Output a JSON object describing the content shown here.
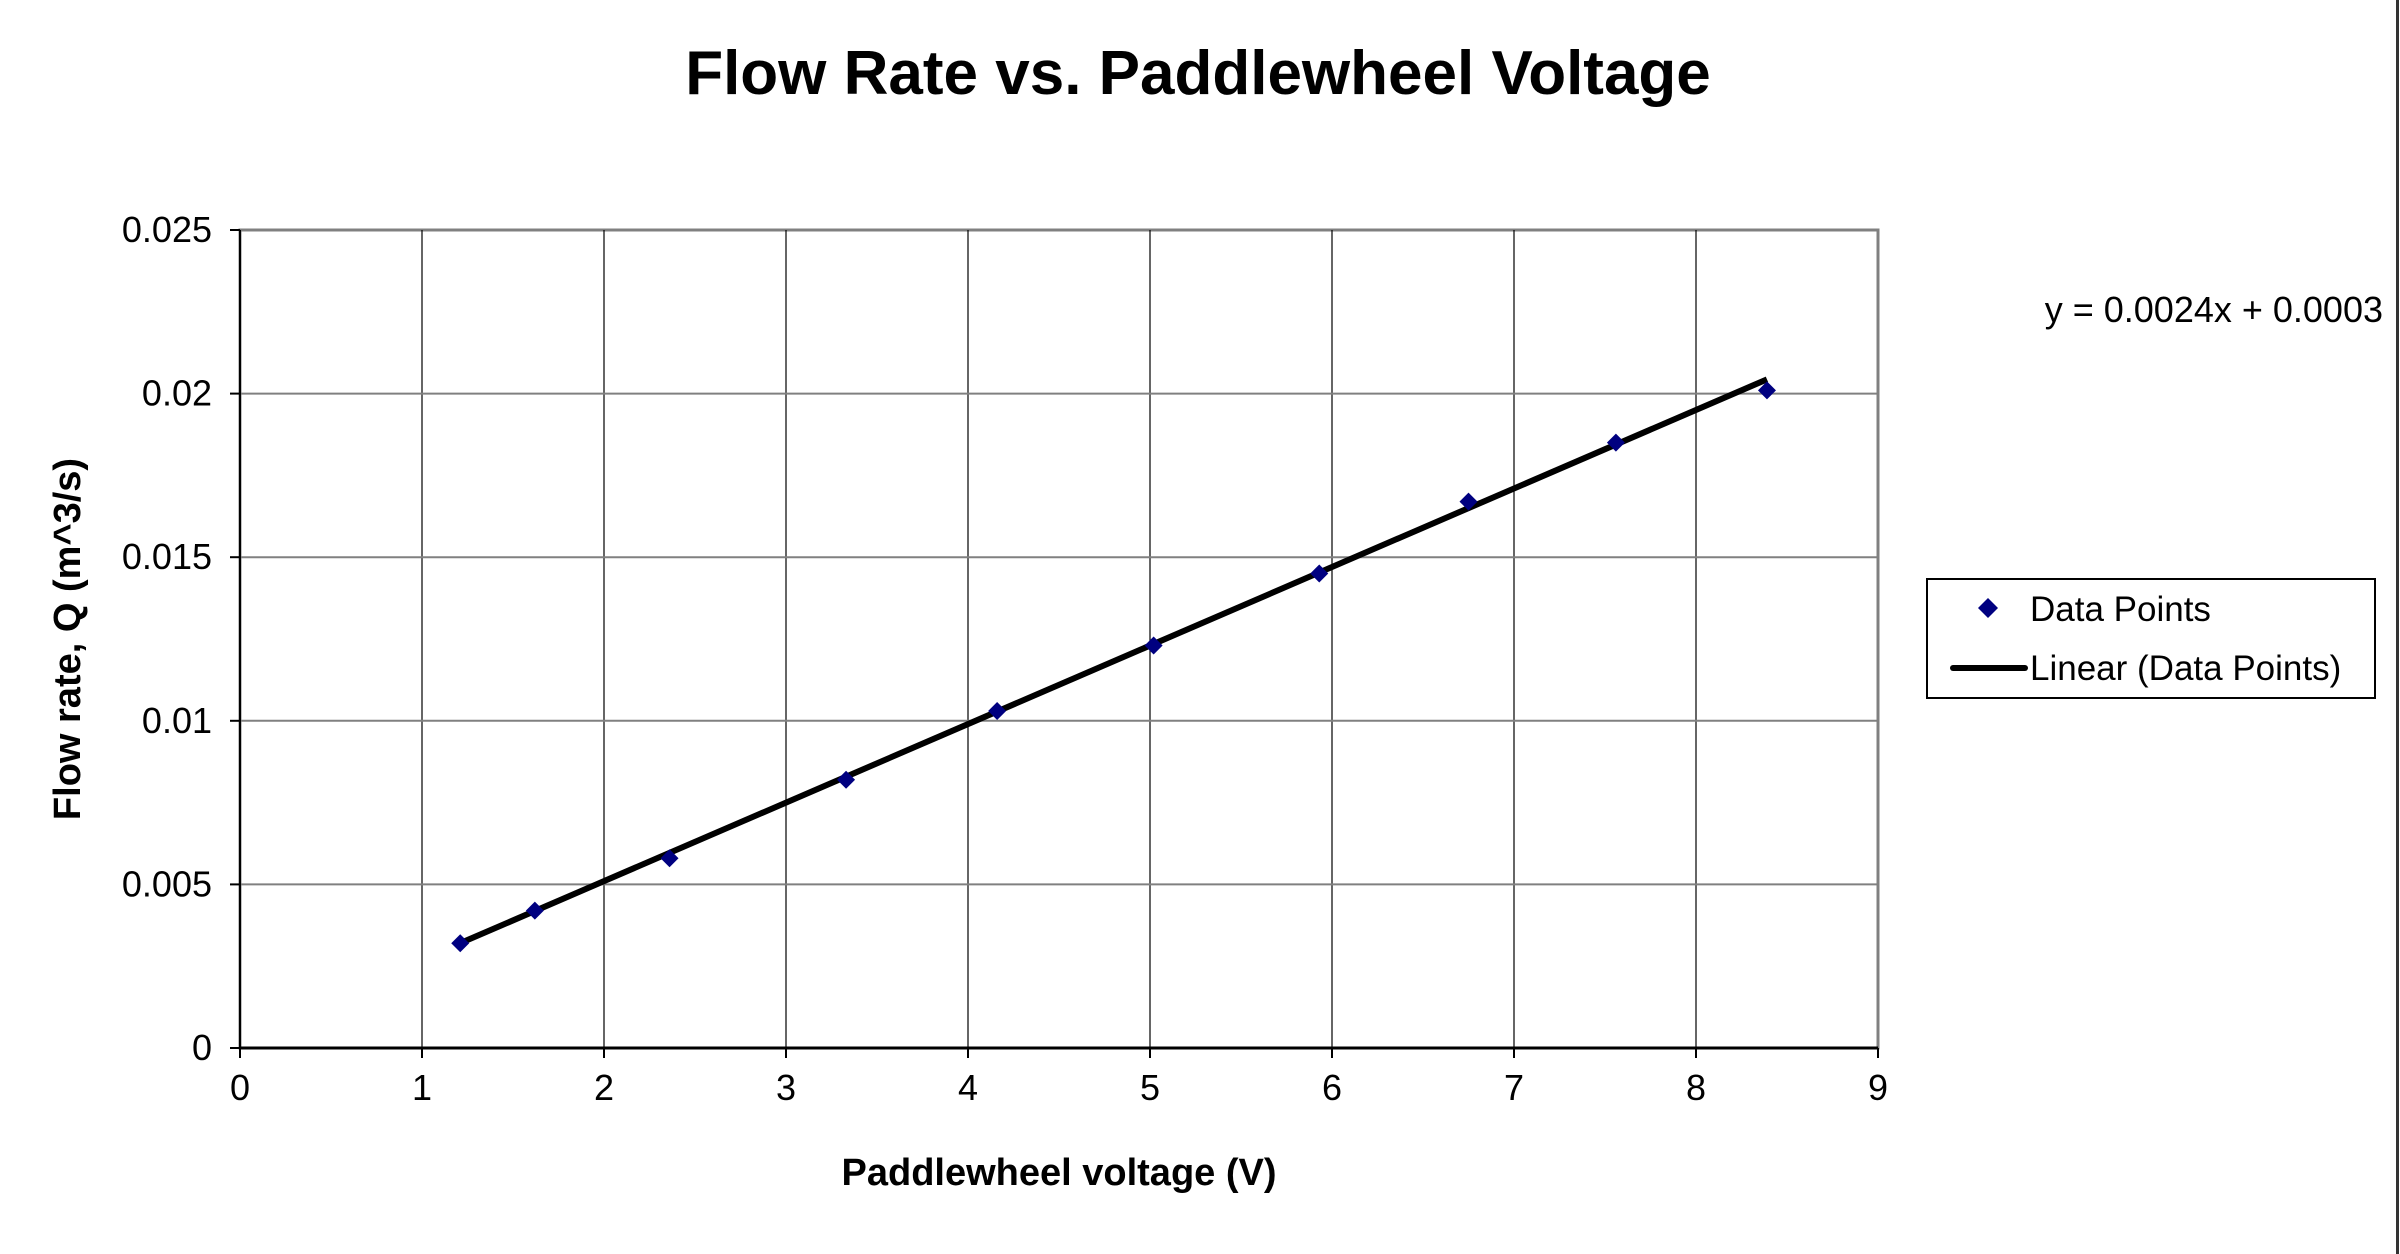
{
  "chart_data": {
    "type": "scatter",
    "title": "Flow Rate vs. Paddlewheel Voltage",
    "xlabel": "Paddlewheel voltage (V)",
    "ylabel": "Flow rate, Q (m^3/s)",
    "xlim": [
      0,
      9
    ],
    "ylim": [
      0,
      0.025
    ],
    "xticks": [
      "0",
      "1",
      "2",
      "3",
      "4",
      "5",
      "6",
      "7",
      "8",
      "9"
    ],
    "yticks": [
      "0",
      "0.005",
      "0.01",
      "0.015",
      "0.02",
      "0.025"
    ],
    "grid": true,
    "legend_position": "right",
    "series": [
      {
        "name": "Data Points",
        "marker": "diamond",
        "color": "#000080",
        "x": [
          1.21,
          1.62,
          2.36,
          3.33,
          4.16,
          5.02,
          5.93,
          6.75,
          7.56,
          8.39
        ],
        "y": [
          0.0032,
          0.0042,
          0.0058,
          0.0082,
          0.0103,
          0.0123,
          0.0145,
          0.0167,
          0.0185,
          0.0201
        ]
      }
    ],
    "trendline": {
      "name": "Linear (Data Points)",
      "color": "#000000",
      "slope": 0.0024,
      "intercept": 0.0003,
      "equation": "y = 0.0024x + 0.0003"
    }
  }
}
